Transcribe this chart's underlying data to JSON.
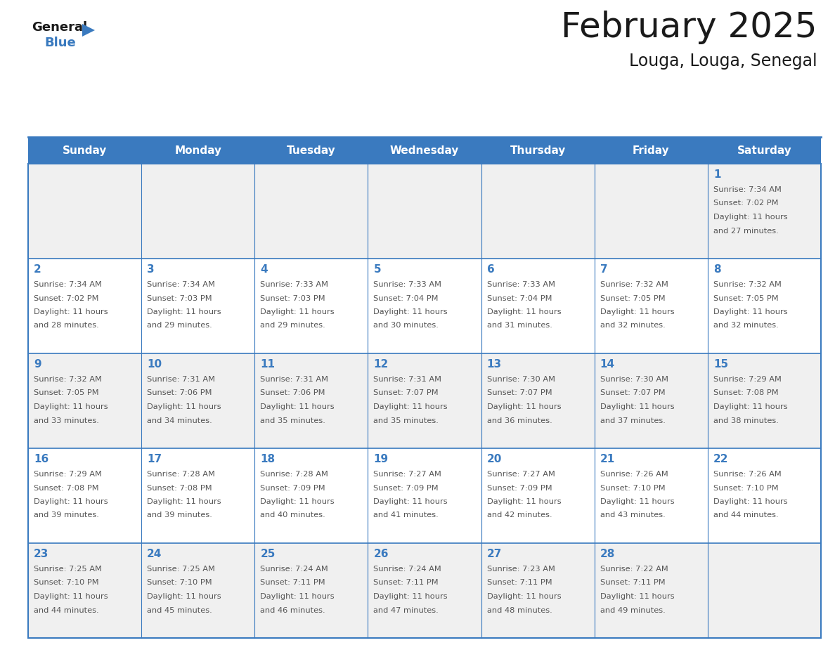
{
  "title": "February 2025",
  "subtitle": "Louga, Louga, Senegal",
  "header_bg": "#3a7abf",
  "header_text_color": "#ffffff",
  "header_days": [
    "Sunday",
    "Monday",
    "Tuesday",
    "Wednesday",
    "Thursday",
    "Friday",
    "Saturday"
  ],
  "bg_color": "#ffffff",
  "cell_border_color": "#3a7abf",
  "day_number_color": "#3a7abf",
  "text_color": "#555555",
  "title_color": "#1a1a1a",
  "logo_general_color": "#1a1a1a",
  "logo_blue_color": "#3a7abf",
  "alt_row_bg": "#f0f0f0",
  "white_row_bg": "#ffffff",
  "calendar": [
    [
      null,
      null,
      null,
      null,
      null,
      null,
      {
        "day": 1,
        "sunrise": "7:34 AM",
        "sunset": "7:02 PM",
        "daylight_detail": "27 minutes."
      }
    ],
    [
      {
        "day": 2,
        "sunrise": "7:34 AM",
        "sunset": "7:02 PM",
        "daylight_detail": "28 minutes."
      },
      {
        "day": 3,
        "sunrise": "7:34 AM",
        "sunset": "7:03 PM",
        "daylight_detail": "29 minutes."
      },
      {
        "day": 4,
        "sunrise": "7:33 AM",
        "sunset": "7:03 PM",
        "daylight_detail": "29 minutes."
      },
      {
        "day": 5,
        "sunrise": "7:33 AM",
        "sunset": "7:04 PM",
        "daylight_detail": "30 minutes."
      },
      {
        "day": 6,
        "sunrise": "7:33 AM",
        "sunset": "7:04 PM",
        "daylight_detail": "31 minutes."
      },
      {
        "day": 7,
        "sunrise": "7:32 AM",
        "sunset": "7:05 PM",
        "daylight_detail": "32 minutes."
      },
      {
        "day": 8,
        "sunrise": "7:32 AM",
        "sunset": "7:05 PM",
        "daylight_detail": "32 minutes."
      }
    ],
    [
      {
        "day": 9,
        "sunrise": "7:32 AM",
        "sunset": "7:05 PM",
        "daylight_detail": "33 minutes."
      },
      {
        "day": 10,
        "sunrise": "7:31 AM",
        "sunset": "7:06 PM",
        "daylight_detail": "34 minutes."
      },
      {
        "day": 11,
        "sunrise": "7:31 AM",
        "sunset": "7:06 PM",
        "daylight_detail": "35 minutes."
      },
      {
        "day": 12,
        "sunrise": "7:31 AM",
        "sunset": "7:07 PM",
        "daylight_detail": "35 minutes."
      },
      {
        "day": 13,
        "sunrise": "7:30 AM",
        "sunset": "7:07 PM",
        "daylight_detail": "36 minutes."
      },
      {
        "day": 14,
        "sunrise": "7:30 AM",
        "sunset": "7:07 PM",
        "daylight_detail": "37 minutes."
      },
      {
        "day": 15,
        "sunrise": "7:29 AM",
        "sunset": "7:08 PM",
        "daylight_detail": "38 minutes."
      }
    ],
    [
      {
        "day": 16,
        "sunrise": "7:29 AM",
        "sunset": "7:08 PM",
        "daylight_detail": "39 minutes."
      },
      {
        "day": 17,
        "sunrise": "7:28 AM",
        "sunset": "7:08 PM",
        "daylight_detail": "39 minutes."
      },
      {
        "day": 18,
        "sunrise": "7:28 AM",
        "sunset": "7:09 PM",
        "daylight_detail": "40 minutes."
      },
      {
        "day": 19,
        "sunrise": "7:27 AM",
        "sunset": "7:09 PM",
        "daylight_detail": "41 minutes."
      },
      {
        "day": 20,
        "sunrise": "7:27 AM",
        "sunset": "7:09 PM",
        "daylight_detail": "42 minutes."
      },
      {
        "day": 21,
        "sunrise": "7:26 AM",
        "sunset": "7:10 PM",
        "daylight_detail": "43 minutes."
      },
      {
        "day": 22,
        "sunrise": "7:26 AM",
        "sunset": "7:10 PM",
        "daylight_detail": "44 minutes."
      }
    ],
    [
      {
        "day": 23,
        "sunrise": "7:25 AM",
        "sunset": "7:10 PM",
        "daylight_detail": "44 minutes."
      },
      {
        "day": 24,
        "sunrise": "7:25 AM",
        "sunset": "7:10 PM",
        "daylight_detail": "45 minutes."
      },
      {
        "day": 25,
        "sunrise": "7:24 AM",
        "sunset": "7:11 PM",
        "daylight_detail": "46 minutes."
      },
      {
        "day": 26,
        "sunrise": "7:24 AM",
        "sunset": "7:11 PM",
        "daylight_detail": "47 minutes."
      },
      {
        "day": 27,
        "sunrise": "7:23 AM",
        "sunset": "7:11 PM",
        "daylight_detail": "48 minutes."
      },
      {
        "day": 28,
        "sunrise": "7:22 AM",
        "sunset": "7:11 PM",
        "daylight_detail": "49 minutes."
      },
      null
    ]
  ]
}
